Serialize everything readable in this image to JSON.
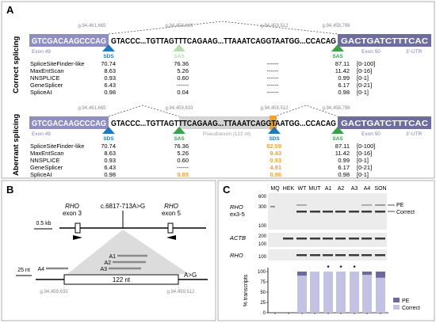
{
  "panelA": {
    "label": "A",
    "coords": [
      "g.94,461,665",
      "g.94,459,633",
      "g.94,459,512",
      "g.94,458,798"
    ],
    "correct": {
      "side_label": "Correct splicing",
      "exon49_seq": "GTCGACAAGCCCAG",
      "seq_mid": "GTACCC...TGTTAGTTTCAGAAG...TTAAATCAGGTAATGG...CCACAG",
      "exon50_seq": "GACTGATCTTTCAC",
      "exon49_label": "Exon 49",
      "exon50_label": "Exon 50",
      "utr_label": "3'-UTR",
      "site_badges": [
        "SDS",
        "SAS",
        "SAS"
      ],
      "scores": {
        "tools": [
          "SpliceSiteFinder-like",
          "MaxEntScan",
          "NNSPLICE",
          "GeneSplicer",
          "SpliceAI"
        ],
        "col1": [
          "70.74",
          "8.63",
          "0.93",
          "6.43",
          "0.98"
        ],
        "col2": [
          "76.36",
          "5.26",
          "0.60",
          "------",
          "0.04"
        ],
        "col3": [
          "------",
          "------",
          "------",
          "------",
          "------"
        ],
        "col4": [
          "87.11",
          "11.42",
          "0.99",
          "6.17",
          "0.98"
        ],
        "ranges": [
          "[0-100]",
          "[0-16]",
          "[0-1]",
          "[0-21]",
          "[0-1]"
        ]
      }
    },
    "aberrant": {
      "side_label": "Aberrant splicing",
      "exon49_seq": "GTCGACAAGCCCAG",
      "seq_mid": "GTACCC...TGTTAGTTTCAGAAG...TTAAATCAGGTAATGG...CCACAG",
      "exon50_seq": "GACTGATCTTTCAC",
      "exon49_label": "Exon 49",
      "pseudoexon_label": "Pseudoexon (122 nt)",
      "exon50_label": "Exon 50",
      "utr_label": "3'-UTR",
      "site_badges": [
        "SDS",
        "SAS",
        "SDS",
        "SAS"
      ],
      "scores": {
        "tools": [
          "SpliceSiteFinder-like",
          "MaxEntScan",
          "NNSPLICE",
          "GeneSplicer",
          "SpliceAI"
        ],
        "col1": [
          "70.74",
          "8.63",
          "0.93",
          "6.43",
          "0.98"
        ],
        "col2": [
          "76.36",
          "5.26",
          "0.60",
          "------",
          "0.85"
        ],
        "col3": [
          "82.59",
          "9.43",
          "0.93",
          "4.91",
          "0.96"
        ],
        "col4": [
          "87.11",
          "11.42",
          "0.99",
          "6.17",
          "0.98"
        ],
        "ranges": [
          "[0-100]",
          "[0-16]",
          "[0-1]",
          "[0-21]",
          "[0-1]"
        ]
      }
    }
  },
  "panelB": {
    "label": "B",
    "variant": "c.6817-713A>G",
    "exon3_gene": "RHO",
    "exon3_label": "exon 3",
    "exon5_gene": "RHO",
    "exon5_label": "exon 5",
    "scale1": "0.5 kb",
    "scale2": "25 nt",
    "amplicons": [
      "A1",
      "A2",
      "A3",
      "A4"
    ],
    "pe_length": "122 nt",
    "mutation": "A>G",
    "coord_left": "g.94,459,633",
    "coord_right": "g.94,459,512"
  },
  "panelC": {
    "label": "C",
    "lanes": [
      "MQ",
      "HEK",
      "WT",
      "MUT",
      "A1",
      "A2",
      "A3",
      "A4",
      "SON"
    ],
    "gel1_gene": "RHO",
    "gel1_sub": "ex3-5",
    "gel1_ticks": [
      "600",
      "300",
      "100"
    ],
    "band_pe": "PE",
    "band_correct": "Correct",
    "gel2_gene": "ACTB",
    "gel2_ticks": [
      "200",
      "100"
    ],
    "gel3_gene": "RHO",
    "gel3_ticks": [
      "100"
    ],
    "colors": {
      "pe": "#6b6a9b",
      "correct": "#c3c2e3"
    }
  },
  "chart_data": {
    "type": "bar",
    "stacked": true,
    "categories": [
      "MQ",
      "HEK",
      "WT",
      "MUT",
      "A1",
      "A2",
      "A3",
      "A4",
      "SON"
    ],
    "series": [
      {
        "name": "Correct",
        "values": [
          0,
          0,
          90,
          100,
          100,
          100,
          100,
          92,
          85
        ]
      },
      {
        "name": "PE",
        "values": [
          0,
          0,
          10,
          0,
          0,
          0,
          0,
          8,
          15
        ]
      }
    ],
    "significance": [
      "",
      "",
      "",
      "",
      "*",
      "*",
      "*",
      "",
      ""
    ],
    "ylabel": "% transcripts",
    "yticks": [
      "0",
      "25",
      "50",
      "75",
      "100"
    ],
    "ylim": [
      0,
      100
    ],
    "legend": "right"
  }
}
